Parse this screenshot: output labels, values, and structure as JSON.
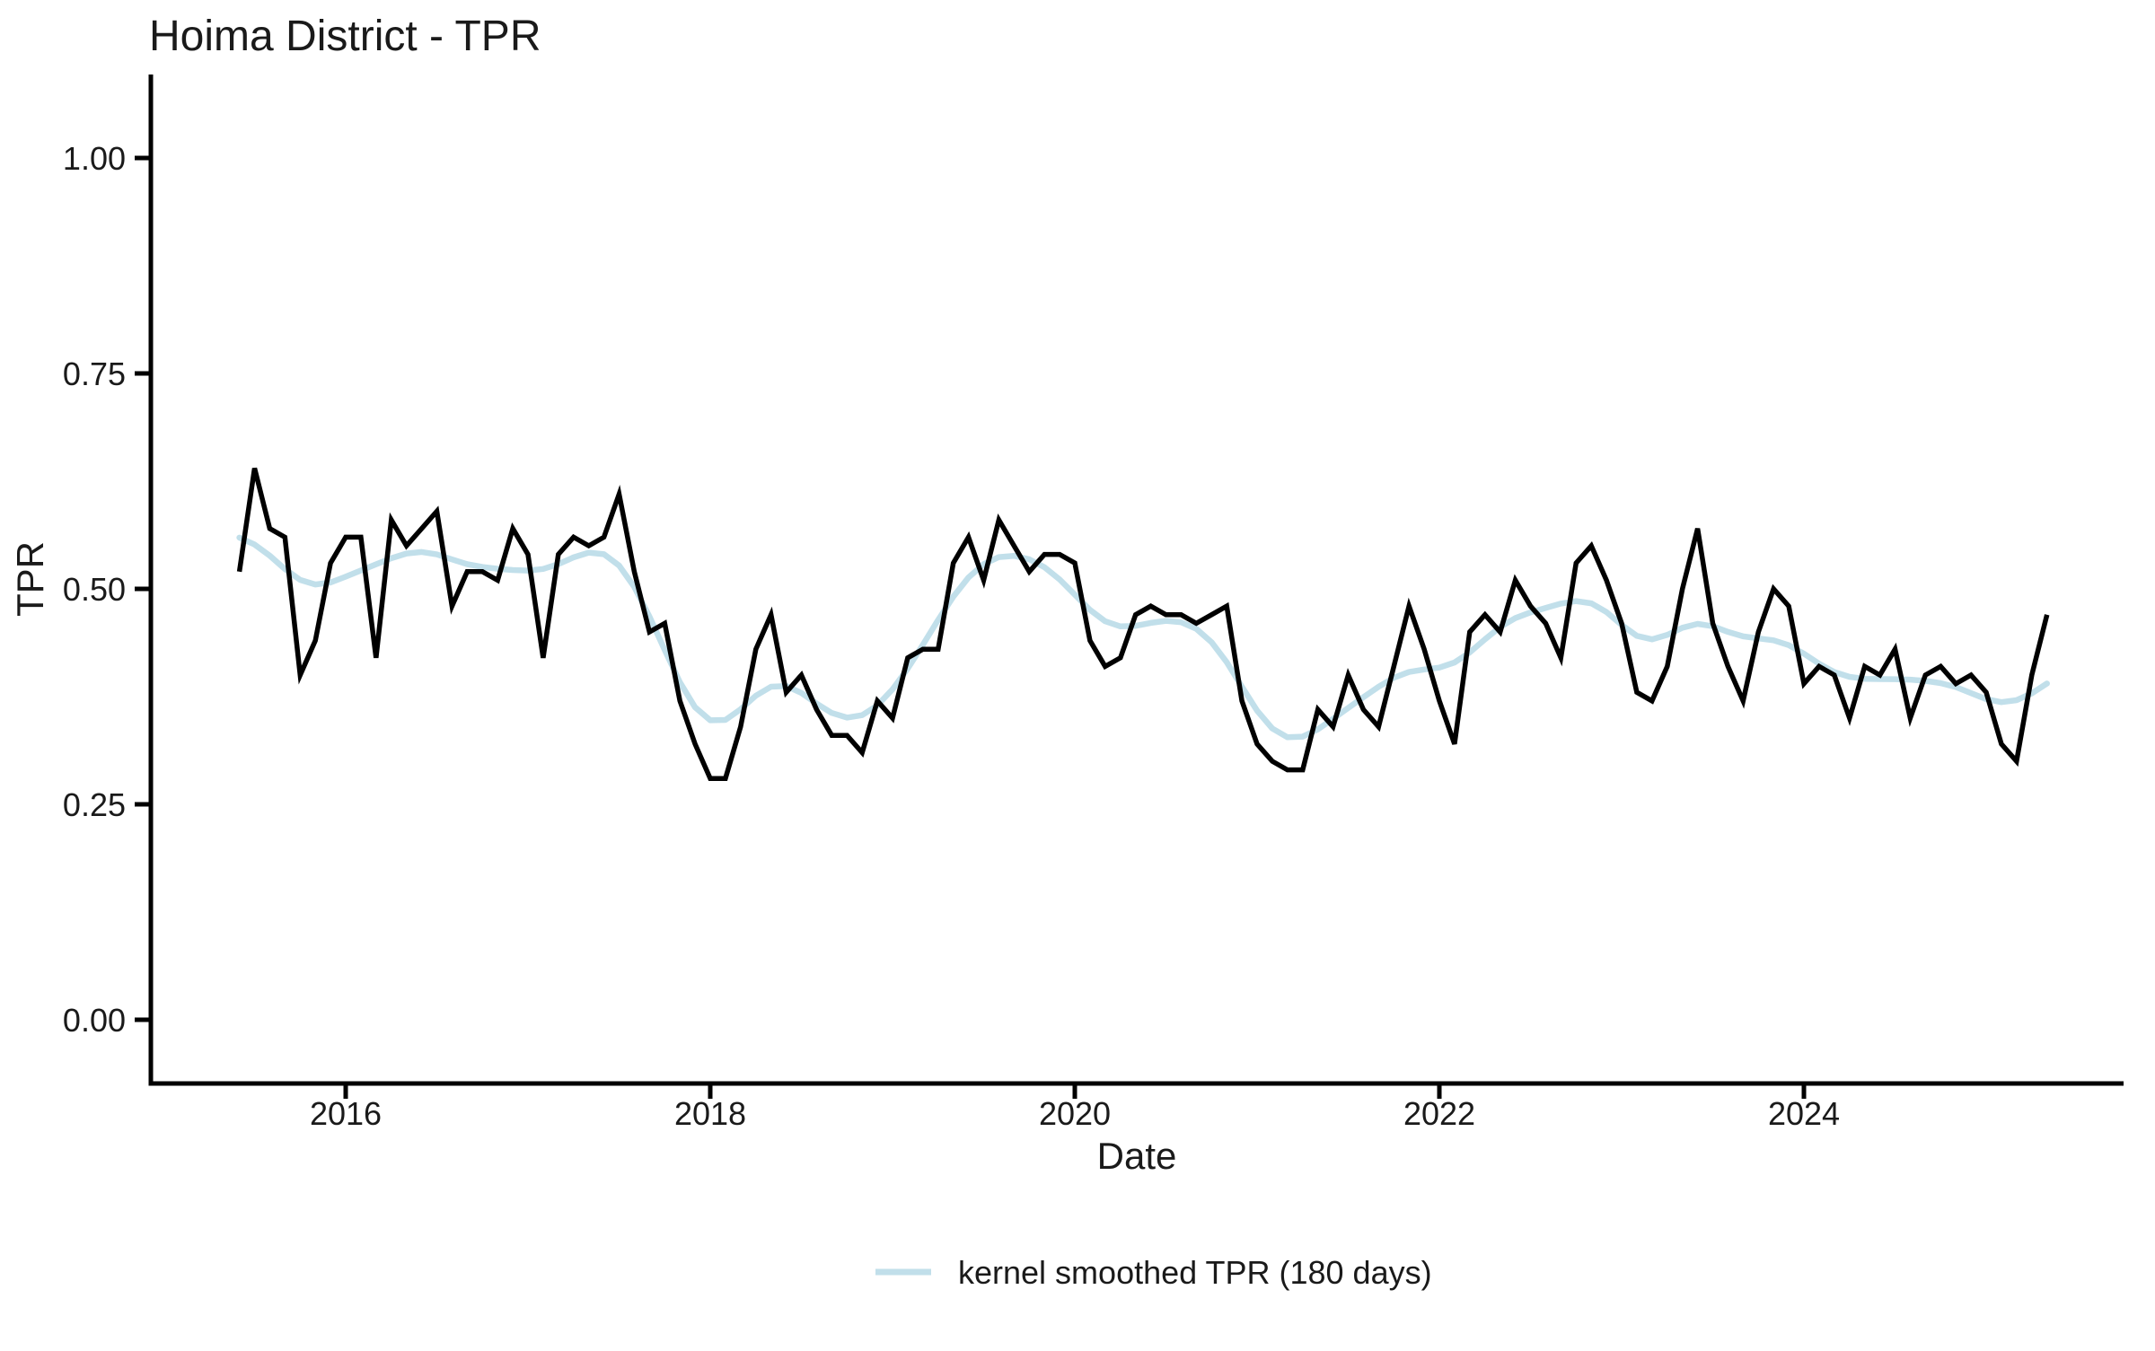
{
  "title": "Hoima District - TPR",
  "x_axis": {
    "label": "Date",
    "ticks": [
      2016,
      2018,
      2020,
      2022,
      2024
    ]
  },
  "y_axis": {
    "label": "TPR",
    "ticks": [
      0.0,
      0.25,
      0.5,
      0.75,
      1.0
    ],
    "tick_labels": [
      "0.00",
      "0.25",
      "0.50",
      "0.75",
      "1.00"
    ]
  },
  "legend": {
    "items": [
      {
        "label": "kernel smoothed TPR (180 days)",
        "color": "#c1dfea"
      }
    ]
  },
  "colors": {
    "tpr_line": "#000000",
    "smoothed_line": "#c1dfea",
    "axis_line": "#000000",
    "text": "#1a1a1a",
    "background": "#ffffff"
  },
  "chart_data": {
    "type": "line",
    "title": "Hoima District - TPR",
    "xlabel": "Date",
    "ylabel": "TPR",
    "ylim": [
      0,
      1
    ],
    "x_start": "2015-06",
    "x_frequency": "monthly",
    "x_tick_years": [
      2016,
      2018,
      2020,
      2022,
      2024
    ],
    "grid": false,
    "legend_position": "bottom",
    "series": [
      {
        "name": "TPR",
        "color": "#000000",
        "values": [
          0.52,
          0.64,
          0.57,
          0.56,
          0.4,
          0.44,
          0.53,
          0.56,
          0.56,
          0.42,
          0.58,
          0.55,
          0.57,
          0.59,
          0.48,
          0.52,
          0.52,
          0.51,
          0.57,
          0.54,
          0.42,
          0.54,
          0.56,
          0.55,
          0.56,
          0.61,
          0.52,
          0.45,
          0.46,
          0.37,
          0.32,
          0.28,
          0.28,
          0.34,
          0.43,
          0.47,
          0.38,
          0.4,
          0.36,
          0.33,
          0.33,
          0.31,
          0.37,
          0.35,
          0.42,
          0.43,
          0.43,
          0.53,
          0.56,
          0.51,
          0.58,
          0.55,
          0.52,
          0.54,
          0.54,
          0.53,
          0.44,
          0.41,
          0.42,
          0.47,
          0.48,
          0.47,
          0.47,
          0.46,
          0.47,
          0.48,
          0.37,
          0.32,
          0.3,
          0.29,
          0.29,
          0.36,
          0.34,
          0.4,
          0.36,
          0.34,
          0.41,
          0.48,
          0.43,
          0.37,
          0.32,
          0.45,
          0.47,
          0.45,
          0.51,
          0.48,
          0.46,
          0.42,
          0.53,
          0.55,
          0.51,
          0.46,
          0.38,
          0.37,
          0.41,
          0.5,
          0.57,
          0.46,
          0.41,
          0.37,
          0.45,
          0.5,
          0.48,
          0.39,
          0.41,
          0.4,
          0.35,
          0.41,
          0.4,
          0.43,
          0.35,
          0.4,
          0.41,
          0.39,
          0.4,
          0.38,
          0.32,
          0.3,
          0.4,
          0.47
        ]
      },
      {
        "name": "kernel smoothed TPR (180 days)",
        "color": "#c1dfea",
        "derived_from": "TPR",
        "smoothing": {
          "type": "gaussian-kernel",
          "window_days": 180,
          "sigma_months": 2.2
        }
      }
    ]
  }
}
